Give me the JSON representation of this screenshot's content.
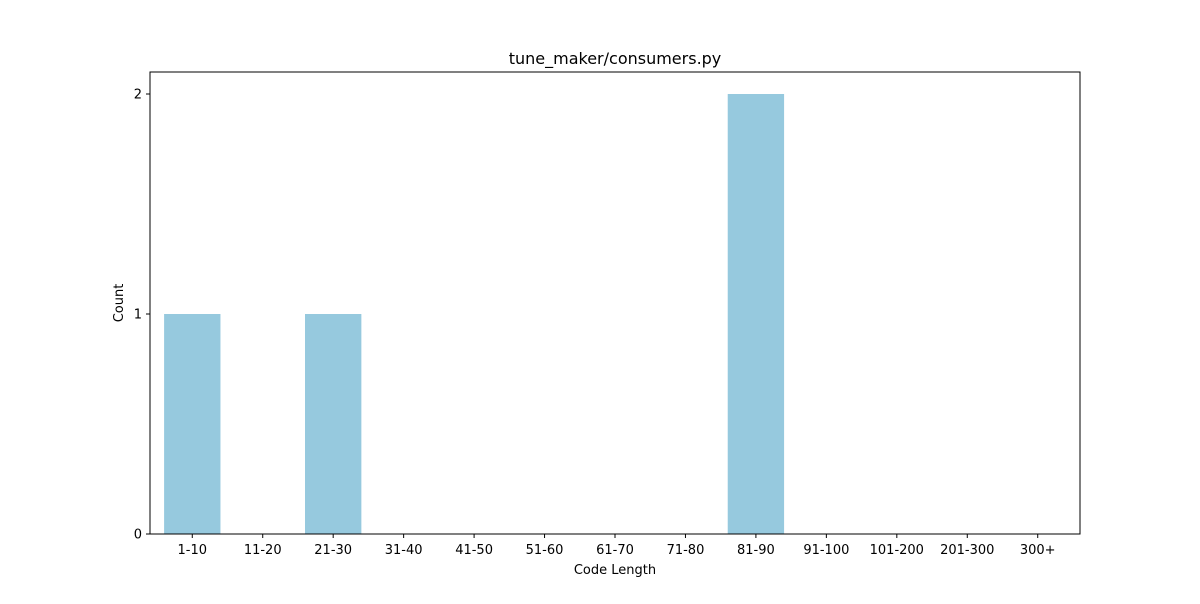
{
  "chart_data": {
    "type": "bar",
    "title": "tune_maker/consumers.py",
    "xlabel": "Code Length",
    "ylabel": "Count",
    "categories": [
      "1-10",
      "11-20",
      "21-30",
      "31-40",
      "41-50",
      "51-60",
      "61-70",
      "71-80",
      "81-90",
      "91-100",
      "101-200",
      "201-300",
      "300+"
    ],
    "values": [
      1,
      0,
      1,
      0,
      0,
      0,
      0,
      0,
      2,
      0,
      0,
      0,
      0
    ],
    "ylim": [
      0,
      2.1
    ],
    "yticks": [
      0,
      1,
      2
    ],
    "grid": false,
    "legend": "none",
    "bar_color": "#96c9de"
  }
}
